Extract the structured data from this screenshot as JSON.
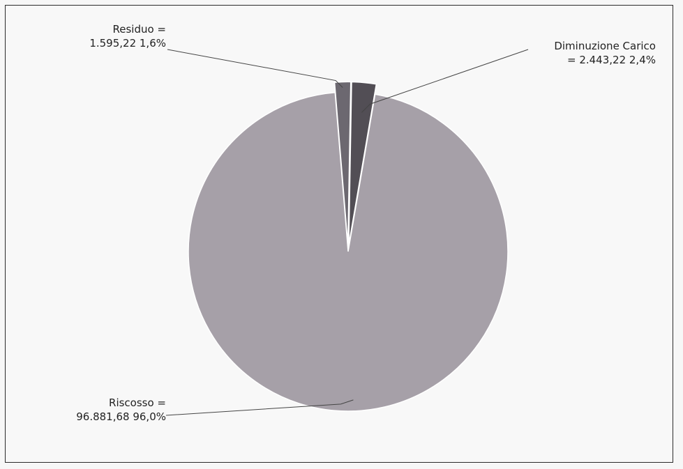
{
  "chart_data": {
    "type": "pie",
    "title": "",
    "slices": [
      {
        "name": "Riscosso",
        "value": 96881.68,
        "percent": 96.0,
        "line1": "Riscosso =",
        "line2": "96.881,68 96,0%",
        "color": "#a6a0a8",
        "explode": false
      },
      {
        "name": "Residuo",
        "value": 1595.22,
        "percent": 1.6,
        "line1": "Residuo =",
        "line2": "1.595,22 1,6%",
        "color": "#6c6870",
        "explode": true
      },
      {
        "name": "Diminuzione Carico",
        "value": 2443.22,
        "percent": 2.4,
        "line1": "Diminuzione Carico",
        "line2": "= 2.443,22 2,4%",
        "color": "#524e55",
        "explode": true
      }
    ],
    "legend": "none",
    "labels": "outside-with-leader-lines"
  }
}
